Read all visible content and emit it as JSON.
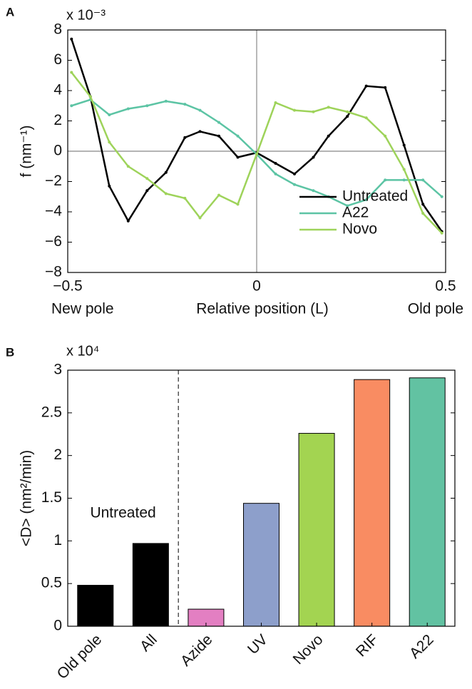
{
  "chart_data": [
    {
      "type": "line",
      "panel_label": "A",
      "multiplier": "x 10⁻³",
      "y_label": "f (nm⁻¹)",
      "x_label": "Relative position (L)",
      "x_left_label": "New pole",
      "x_right_label": "Old pole",
      "x": [
        -0.49,
        -0.44,
        -0.39,
        -0.34,
        -0.29,
        -0.24,
        -0.19,
        -0.15,
        -0.1,
        -0.05,
        0,
        0.05,
        0.1,
        0.15,
        0.19,
        0.24,
        0.29,
        0.34,
        0.39,
        0.44,
        0.49
      ],
      "series": [
        {
          "name": "Untreated",
          "color": "#000000",
          "values": [
            7.4,
            3.6,
            -2.3,
            -4.6,
            -2.6,
            -1.4,
            0.9,
            1.3,
            1.0,
            -0.4,
            -0.1,
            -0.8,
            -1.5,
            -0.4,
            1.0,
            2.3,
            4.3,
            4.2,
            0.4,
            -3.5,
            -5.3
          ]
        },
        {
          "name": "A22",
          "color": "#5cc4a4",
          "values": [
            3.0,
            3.4,
            2.4,
            2.8,
            3.0,
            3.3,
            3.1,
            2.7,
            1.9,
            1.0,
            -0.2,
            -1.5,
            -2.2,
            -2.6,
            -3.0,
            -3.6,
            -3.2,
            -1.9,
            -1.9,
            -1.9,
            -3.0
          ]
        },
        {
          "name": "Novo",
          "color": "#9ed35a",
          "values": [
            5.2,
            3.6,
            0.6,
            -1.0,
            -1.8,
            -2.8,
            -3.1,
            -4.4,
            -2.9,
            -3.5,
            -0.2,
            3.2,
            2.7,
            2.6,
            2.9,
            2.6,
            2.2,
            1.0,
            -1.2,
            -4.1,
            -5.4
          ]
        }
      ],
      "xlim": [
        -0.5,
        0.5
      ],
      "xticks": [
        {
          "value": -0.5,
          "label": "−0.5"
        },
        0,
        0.5
      ],
      "ylim": [
        -8,
        8
      ],
      "yticks": [
        {
          "value": -8,
          "label": "−8"
        },
        {
          "value": -6,
          "label": "−6"
        },
        {
          "value": -4,
          "label": "−4"
        },
        {
          "value": -2,
          "label": "−2"
        },
        0,
        2,
        4,
        6,
        8
      ],
      "zero_lines": true,
      "legend": "lower-right"
    },
    {
      "type": "bar",
      "panel_label": "B",
      "multiplier": "x 10⁴",
      "y_label": "<D> (nm²/min)",
      "annotation": "Untreated",
      "categories": [
        "Old pole",
        "All",
        "Azide",
        "UV",
        "Novo",
        "RIF",
        "A22"
      ],
      "values": [
        0.48,
        0.97,
        0.2,
        1.44,
        2.26,
        2.89,
        2.91
      ],
      "colors": [
        "#000000",
        "#000000",
        "#e37fc2",
        "#8d9fcb",
        "#a3d451",
        "#f98c62",
        "#62c2a2"
      ],
      "ylim": [
        0,
        3
      ],
      "yticks": [
        0,
        0.5,
        1,
        1.5,
        2,
        2.5,
        3
      ]
    }
  ]
}
